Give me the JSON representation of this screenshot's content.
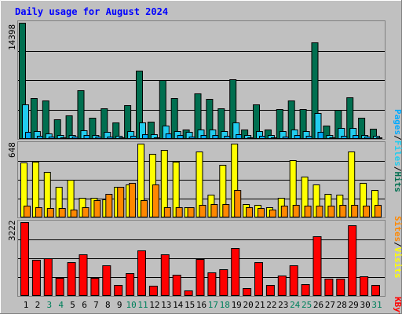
{
  "chart_data": [
    {
      "type": "bar",
      "title": "Daily usage for August 2024",
      "categories": [
        "1",
        "2",
        "3",
        "4",
        "5",
        "6",
        "7",
        "8",
        "9",
        "10",
        "11",
        "12",
        "13",
        "14",
        "15",
        "16",
        "17",
        "18",
        "19",
        "20",
        "21",
        "22",
        "23",
        "24",
        "25",
        "26",
        "27",
        "28",
        "29",
        "30",
        "31"
      ],
      "weekend_days": [
        "3",
        "4",
        "10",
        "11",
        "17",
        "18",
        "24",
        "25",
        "31"
      ],
      "ymax_label": "14398",
      "ylim": [
        0,
        14398
      ],
      "series": [
        {
          "name": "Hits",
          "color": "#006f50",
          "values": [
            14398,
            5100,
            4800,
            2400,
            2900,
            6000,
            2600,
            3800,
            2000,
            4200,
            8500,
            2100,
            7300,
            5100,
            1200,
            5600,
            5000,
            3800,
            7400,
            1200,
            4300,
            1200,
            3700,
            4800,
            3700,
            12000,
            1700,
            3600,
            5200,
            2600,
            1300
          ]
        },
        {
          "name": "Files",
          "color": "#22ccee",
          "values": [
            4300,
            1000,
            700,
            500,
            500,
            1100,
            500,
            900,
            400,
            1000,
            2000,
            600,
            1700,
            1000,
            900,
            1200,
            1200,
            1000,
            2000,
            500,
            1000,
            500,
            1000,
            1200,
            1000,
            3200,
            500,
            1400,
            1400,
            500,
            400
          ]
        },
        {
          "name": "Pages",
          "color": "#00aaff",
          "values": [
            900,
            400,
            300,
            200,
            250,
            500,
            300,
            300,
            200,
            400,
            600,
            200,
            700,
            500,
            300,
            500,
            500,
            400,
            600,
            200,
            400,
            200,
            300,
            500,
            400,
            900,
            200,
            400,
            500,
            300,
            200
          ]
        }
      ],
      "grid": true
    },
    {
      "type": "bar",
      "categories": [
        "1",
        "2",
        "3",
        "4",
        "5",
        "6",
        "7",
        "8",
        "9",
        "10",
        "11",
        "12",
        "13",
        "14",
        "15",
        "16",
        "17",
        "18",
        "19",
        "20",
        "21",
        "22",
        "23",
        "24",
        "25",
        "26",
        "27",
        "28",
        "29",
        "30",
        "31"
      ],
      "ymax_label": "648",
      "ylim": [
        0,
        648
      ],
      "series": [
        {
          "name": "Visits",
          "color": "#ffff00",
          "values": [
            480,
            490,
            400,
            270,
            330,
            170,
            170,
            160,
            270,
            290,
            650,
            560,
            590,
            490,
            90,
            580,
            200,
            460,
            650,
            120,
            110,
            90,
            170,
            500,
            360,
            290,
            210,
            200,
            580,
            300,
            240
          ]
        },
        {
          "name": "Sites",
          "color": "#ff8800",
          "values": [
            100,
            90,
            80,
            80,
            70,
            90,
            150,
            210,
            270,
            300,
            150,
            290,
            90,
            90,
            90,
            110,
            120,
            120,
            240,
            90,
            80,
            70,
            100,
            110,
            100,
            100,
            100,
            110,
            110,
            100,
            110
          ]
        }
      ],
      "grid": true
    },
    {
      "type": "bar",
      "categories": [
        "1",
        "2",
        "3",
        "4",
        "5",
        "6",
        "7",
        "8",
        "9",
        "10",
        "11",
        "12",
        "13",
        "14",
        "15",
        "16",
        "17",
        "18",
        "19",
        "20",
        "21",
        "22",
        "23",
        "24",
        "25",
        "26",
        "27",
        "28",
        "29",
        "30",
        "31"
      ],
      "ymax_label": "3222",
      "ylim": [
        0,
        3222
      ],
      "series": [
        {
          "name": "KBytes",
          "color": "#ff0000",
          "values": [
            3222,
            1580,
            1650,
            800,
            1480,
            1830,
            780,
            1330,
            470,
            1000,
            1990,
            450,
            1800,
            930,
            230,
            1600,
            1030,
            1150,
            2100,
            330,
            1480,
            480,
            900,
            1350,
            510,
            2600,
            750,
            750,
            3080,
            870,
            480
          ]
        }
      ],
      "grid": true
    }
  ],
  "legend": {
    "top": {
      "hits": "Hits",
      "files": "Files",
      "pages": "Pages",
      "sep": "/"
    },
    "middle": {
      "visits": "Visits",
      "sites": "Sites",
      "sep": "/"
    },
    "bottom": {
      "kbytes": "KBytes"
    }
  },
  "colors": {
    "background": "#c0c0c0",
    "plot_bg": "#c0c0c0",
    "frame_light": "#ffffff",
    "frame_dark": "#808080",
    "title": "#0000ff",
    "weekend_label": "#00805c",
    "weekday_label": "#000000"
  }
}
